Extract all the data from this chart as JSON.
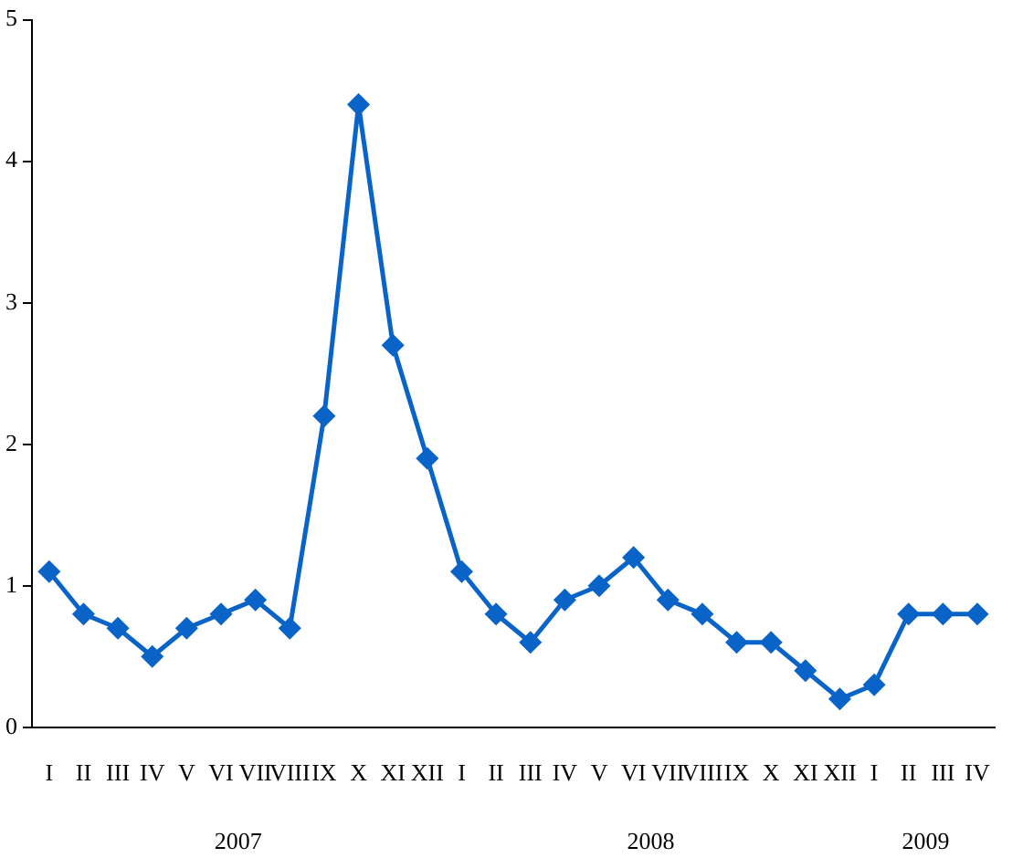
{
  "chart_data": {
    "type": "line",
    "categories": [
      "I",
      "II",
      "III",
      "IV",
      "V",
      "VI",
      "VII",
      "VIII",
      "IX",
      "X",
      "XI",
      "XII",
      "I",
      "II",
      "III",
      "IV",
      "V",
      "VI",
      "VII",
      "VIII",
      "IX",
      "X",
      "XI",
      "XII",
      "I",
      "II",
      "III",
      "IV"
    ],
    "series": [
      {
        "color": "#0a64c8",
        "values": [
          1.1,
          0.8,
          0.7,
          0.5,
          0.7,
          0.8,
          0.9,
          0.7,
          2.2,
          4.4,
          2.7,
          1.9,
          1.1,
          0.8,
          0.6,
          0.9,
          1.0,
          1.2,
          0.9,
          0.8,
          0.6,
          0.6,
          0.4,
          0.2,
          0.3,
          0.8,
          0.8,
          0.8
        ]
      }
    ],
    "annotations": [
      "2007",
      "2008",
      "2009"
    ],
    "ylim": [
      0,
      5
    ],
    "yticks": [
      0,
      1,
      2,
      3,
      4,
      5
    ],
    "grid": false,
    "legend": false,
    "marker": "diamond",
    "line_style": "solid"
  }
}
